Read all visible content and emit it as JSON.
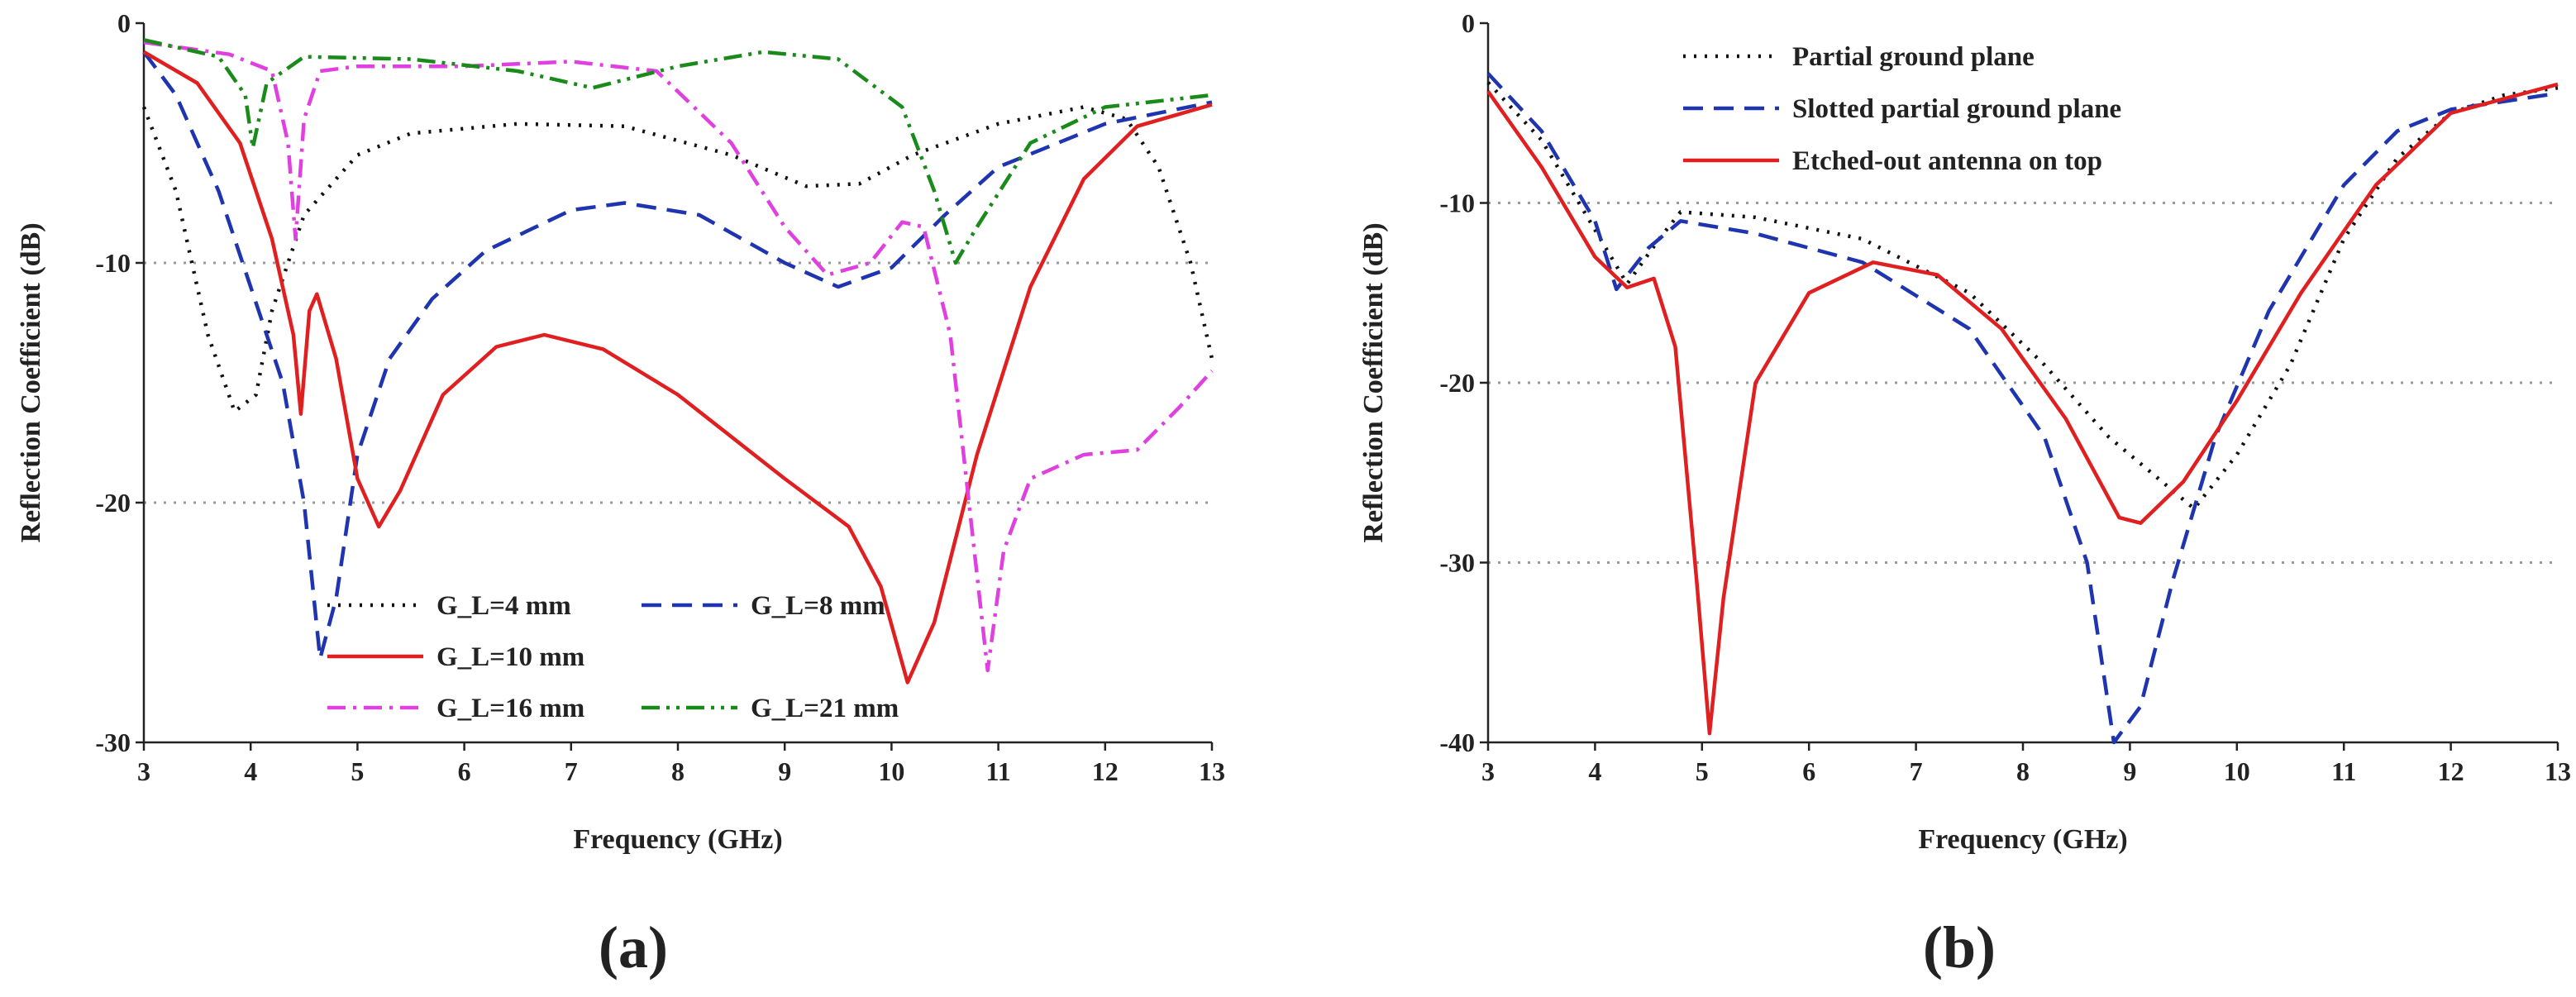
{
  "chart_data": [
    {
      "type": "line",
      "panel_label": "(a)",
      "x_label": "Frequency (GHz)",
      "y_label": "Reflection Coefficient (dB)",
      "xlim": [
        3,
        13
      ],
      "xticks": [
        3,
        4,
        5,
        6,
        7,
        8,
        9,
        10,
        11,
        12,
        13
      ],
      "ylim": [
        -30,
        0
      ],
      "yticks": [
        0,
        -10,
        -20,
        -30
      ],
      "grid": true,
      "legend": "lower center",
      "series": [
        {
          "name": "G_L=4 mm",
          "color": "#111111",
          "style": "dotted",
          "x": [
            3,
            3.3,
            3.6,
            3.85,
            4.05,
            4.2,
            4.5,
            5,
            5.5,
            6.5,
            7.5,
            8.5,
            9.2,
            9.7,
            10.2,
            11,
            11.8,
            12.2,
            12.5,
            12.8,
            13
          ],
          "values": [
            -3.5,
            -7,
            -13,
            -16.2,
            -15.5,
            -12,
            -8,
            -5.5,
            -4.6,
            -4.2,
            -4.3,
            -5.5,
            -6.8,
            -6.7,
            -5.5,
            -4.2,
            -3.5,
            -4,
            -6,
            -10,
            -14
          ]
        },
        {
          "name": "G_L=8 mm",
          "color": "#1f35b0",
          "style": "dashed",
          "x": [
            3,
            3.3,
            3.7,
            4,
            4.3,
            4.5,
            4.65,
            4.8,
            5,
            5.3,
            5.7,
            6.2,
            7,
            7.5,
            8.2,
            9,
            9.5,
            10,
            10.5,
            11,
            12,
            13
          ],
          "values": [
            -1.2,
            -3,
            -7,
            -11,
            -15,
            -20,
            -26.5,
            -24,
            -18,
            -14,
            -11.5,
            -9.5,
            -7.8,
            -7.5,
            -8,
            -10,
            -11,
            -10.2,
            -8,
            -6,
            -4.2,
            -3.3
          ]
        },
        {
          "name": "G_L=10 mm",
          "color": "#e02020",
          "style": "solid",
          "x": [
            3,
            3.5,
            3.9,
            4.2,
            4.4,
            4.47,
            4.55,
            4.62,
            4.8,
            5,
            5.2,
            5.4,
            5.8,
            6.3,
            6.75,
            7.3,
            8,
            9,
            9.6,
            9.9,
            10.15,
            10.4,
            10.8,
            11.3,
            11.8,
            12.3,
            13
          ],
          "values": [
            -1.2,
            -2.5,
            -5,
            -9,
            -13,
            -16.3,
            -12,
            -11.3,
            -14,
            -19,
            -21,
            -19.5,
            -15.5,
            -13.5,
            -13,
            -13.6,
            -15.5,
            -19,
            -21,
            -23.5,
            -27.5,
            -25,
            -18,
            -11,
            -6.5,
            -4.3,
            -3.4
          ]
        },
        {
          "name": "G_L=16 mm",
          "color": "#e040e0",
          "style": "dashdot",
          "x": [
            3,
            3.8,
            4.2,
            4.35,
            4.42,
            4.5,
            4.65,
            5,
            6,
            7,
            7.8,
            8.5,
            9,
            9.4,
            9.8,
            10.1,
            10.3,
            10.55,
            10.75,
            10.9,
            11.05,
            11.3,
            11.8,
            12.3,
            12.7,
            13
          ],
          "values": [
            -0.8,
            -1.3,
            -2,
            -5,
            -9,
            -4,
            -2,
            -1.8,
            -1.8,
            -1.6,
            -2,
            -5,
            -8.5,
            -10.5,
            -10,
            -8.3,
            -8.5,
            -13,
            -21,
            -27,
            -22,
            -19,
            -18,
            -17.8,
            -16,
            -14.5
          ]
        },
        {
          "name": "G_L=21 mm",
          "color": "#1a8a1a",
          "style": "dashdotdot",
          "x": [
            3,
            3.7,
            3.95,
            4.02,
            4.15,
            4.5,
            5.5,
            6.5,
            7.2,
            8,
            8.8,
            9.5,
            10.1,
            10.4,
            10.6,
            10.8,
            11.3,
            12,
            13
          ],
          "values": [
            -0.7,
            -1.4,
            -3,
            -5.2,
            -2.5,
            -1.4,
            -1.5,
            -2,
            -2.7,
            -1.8,
            -1.2,
            -1.5,
            -3.5,
            -7,
            -10,
            -8.5,
            -5,
            -3.5,
            -3
          ]
        }
      ]
    },
    {
      "type": "line",
      "panel_label": "(b)",
      "x_label": "Frequency (GHz)",
      "y_label": "Reflection Coefficient (dB)",
      "xlim": [
        3,
        13
      ],
      "xticks": [
        3,
        4,
        5,
        6,
        7,
        8,
        9,
        10,
        11,
        12,
        13
      ],
      "ylim": [
        -40,
        0
      ],
      "yticks": [
        0,
        -10,
        -20,
        -30,
        -40
      ],
      "grid": true,
      "legend": "upper left",
      "series": [
        {
          "name": "Partial ground plane",
          "color": "#111111",
          "style": "dotted",
          "x": [
            3,
            3.5,
            4,
            4.3,
            4.6,
            4.8,
            5.5,
            6.5,
            7.5,
            8.2,
            8.8,
            9.3,
            9.6,
            10,
            10.5,
            11,
            11.5,
            12,
            12.5,
            13
          ],
          "values": [
            -3.3,
            -6.5,
            -11.5,
            -14.5,
            -12,
            -10.5,
            -10.8,
            -12,
            -15,
            -19,
            -23,
            -25.5,
            -27,
            -24,
            -19,
            -12,
            -7.5,
            -5,
            -4,
            -3.6
          ]
        },
        {
          "name": "Slotted partial ground plane",
          "color": "#1f35b0",
          "style": "dashed",
          "x": [
            3,
            3.5,
            4,
            4.2,
            4.5,
            4.8,
            5.5,
            6.5,
            7.5,
            8.2,
            8.6,
            8.85,
            9.1,
            9.4,
            9.8,
            10.3,
            11,
            11.5,
            12,
            13
          ],
          "values": [
            -2.8,
            -6,
            -11,
            -14.8,
            -12.5,
            -11,
            -11.7,
            -13.3,
            -17,
            -23,
            -30,
            -40,
            -38,
            -31,
            -23,
            -16,
            -9,
            -6,
            -4.8,
            -3.9
          ]
        },
        {
          "name": "Etched-out antenna on top",
          "color": "#e02020",
          "style": "solid",
          "x": [
            3,
            3.5,
            4,
            4.3,
            4.55,
            4.75,
            4.95,
            5.07,
            5.2,
            5.5,
            6,
            6.6,
            7.2,
            7.8,
            8.4,
            8.9,
            9.1,
            9.5,
            10,
            10.6,
            11.3,
            12,
            13
          ],
          "values": [
            -3.8,
            -8,
            -13,
            -14.7,
            -14.2,
            -18,
            -31,
            -39.5,
            -32,
            -20,
            -15,
            -13.3,
            -14,
            -17,
            -22,
            -27.5,
            -27.8,
            -25.5,
            -21,
            -15,
            -9,
            -5,
            -3.4
          ]
        }
      ]
    }
  ]
}
